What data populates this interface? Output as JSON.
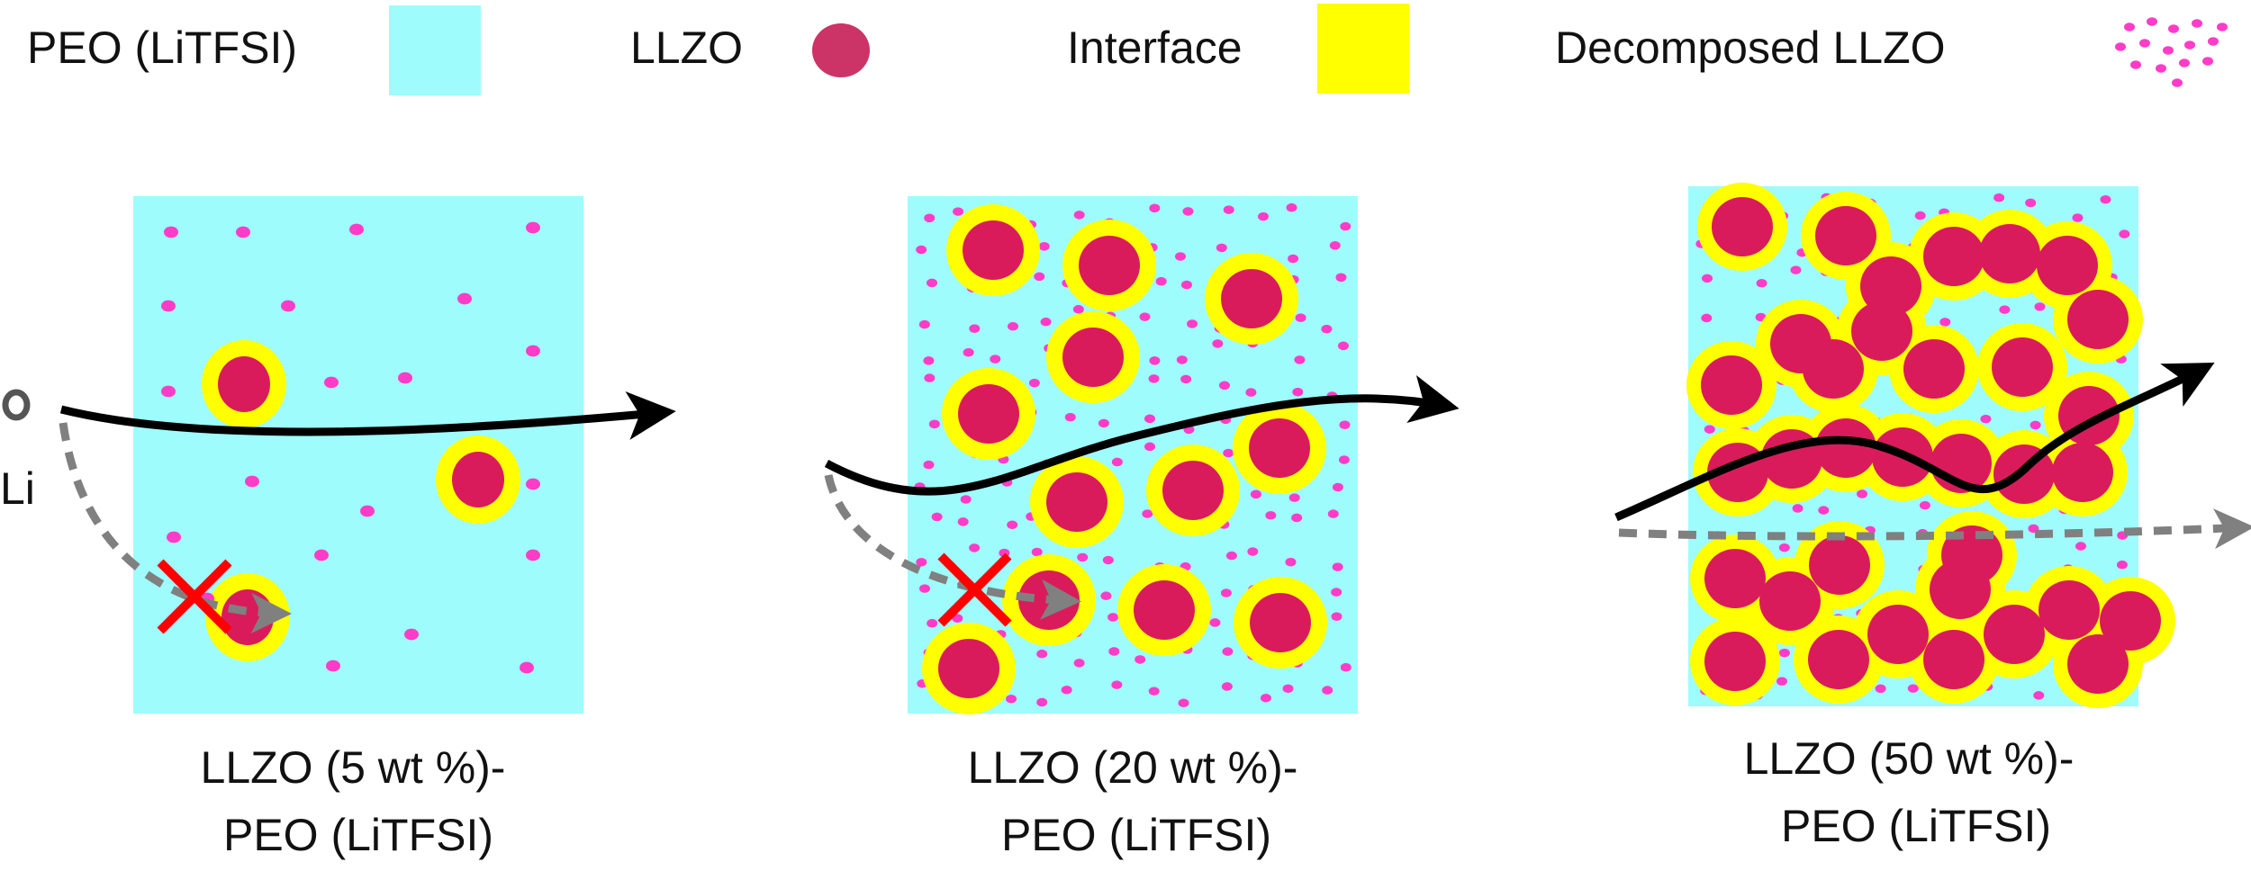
{
  "legend": {
    "items": [
      {
        "label": "PEO (LiTFSI)",
        "symbol": "peo-square"
      },
      {
        "label": "LLZO",
        "symbol": "llzo-ellipse"
      },
      {
        "label": "Interface",
        "symbol": "interface-square"
      },
      {
        "label": "Decomposed LLZO",
        "symbol": "decomposed-dots"
      }
    ]
  },
  "source_label": "Li",
  "panels": [
    {
      "id": "p5",
      "caption_line1": "LLZO (5 wt %)-",
      "caption_line2": "PEO (LiTFSI)"
    },
    {
      "id": "p20",
      "caption_line1": "LLZO (20 wt %)-",
      "caption_line2": "PEO (LiTFSI)"
    },
    {
      "id": "p50",
      "caption_line1": "LLZO (50 wt %)-",
      "caption_line2": "PEO (LiTFSI)"
    }
  ],
  "colors": {
    "peo": "#9ffcfc",
    "llzo": "#d91b5c",
    "llzo_legend": "#cc3366",
    "interface": "#ffff00",
    "decomposed": "#ff3cc8",
    "arrow": "#000000",
    "dashed_arrow": "#808080",
    "blocked": "#ff0000"
  }
}
